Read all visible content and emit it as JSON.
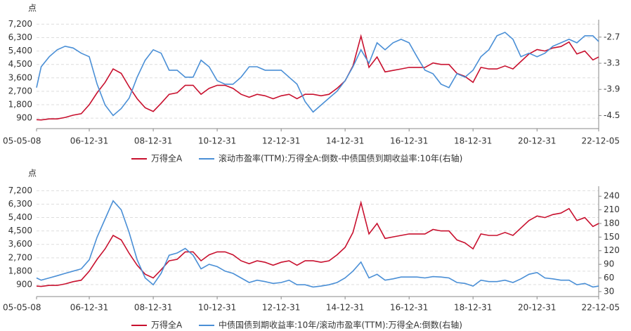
{
  "chart_data": [
    {
      "type": "line",
      "y_unit": "点",
      "x": [
        "05-05-08",
        "05-06-30",
        "05-09-30",
        "05-12-31",
        "06-03-31",
        "06-06-30",
        "06-09-30",
        "06-12-31",
        "07-03-31",
        "07-06-30",
        "07-09-30",
        "07-12-31",
        "08-03-31",
        "08-06-30",
        "08-09-30",
        "08-12-31",
        "09-03-31",
        "09-06-30",
        "09-09-30",
        "09-12-31",
        "10-03-31",
        "10-06-30",
        "10-09-30",
        "10-12-31",
        "11-03-31",
        "11-06-30",
        "11-09-30",
        "11-12-31",
        "12-03-31",
        "12-06-30",
        "12-09-30",
        "12-12-31",
        "13-03-31",
        "13-06-30",
        "13-09-30",
        "13-12-31",
        "14-03-31",
        "14-06-30",
        "14-09-30",
        "14-12-31",
        "15-03-31",
        "15-06-30",
        "15-09-30",
        "15-12-31",
        "16-03-31",
        "16-06-30",
        "16-09-30",
        "16-12-31",
        "17-03-31",
        "17-06-30",
        "17-09-30",
        "17-12-31",
        "18-03-31",
        "18-06-30",
        "18-09-30",
        "18-12-31",
        "19-03-31",
        "19-06-30",
        "19-09-30",
        "19-12-31",
        "20-03-31",
        "20-06-30",
        "20-09-30",
        "20-12-31",
        "21-03-31",
        "21-06-30",
        "21-09-30",
        "21-12-31",
        "22-03-31",
        "22-06-30",
        "22-09-30",
        "22-12-05"
      ],
      "xlim": [
        "05-05-08",
        "22-12-05"
      ],
      "xticks": [
        "05-05-08",
        "06-12-31",
        "08-12-31",
        "10-12-31",
        "12-12-31",
        "14-12-31",
        "16-12-31",
        "18-12-31",
        "20-12-31",
        "22-12-05"
      ],
      "ylim": [
        200,
        7500
      ],
      "yticks": [
        {
          "value": 900,
          "label": "900"
        },
        {
          "value": 1800,
          "label": "1,800"
        },
        {
          "value": 2700,
          "label": "2,700"
        },
        {
          "value": 3600,
          "label": "3,600"
        },
        {
          "value": 4500,
          "label": "4,500"
        },
        {
          "value": 5400,
          "label": "5,400"
        },
        {
          "value": 6300,
          "label": "6,300"
        },
        {
          "value": 7200,
          "label": "7,200"
        }
      ],
      "y2lim": [
        -4.8,
        -2.3
      ],
      "y2ticks": [
        -4.5,
        -3.9,
        -3.3,
        -2.7
      ],
      "grid": true,
      "series": [
        {
          "name": "万得全A",
          "color": "#c8102e",
          "values": [
            800,
            780,
            850,
            850,
            950,
            1100,
            1200,
            1800,
            2600,
            3300,
            4200,
            3900,
            3000,
            2200,
            1600,
            1350,
            1900,
            2500,
            2600,
            3100,
            3100,
            2500,
            2900,
            3100,
            3100,
            2900,
            2500,
            2300,
            2500,
            2400,
            2200,
            2400,
            2500,
            2200,
            2500,
            2500,
            2400,
            2500,
            2900,
            3400,
            4400,
            6400,
            4300,
            5000,
            4000,
            4100,
            4200,
            4300,
            4300,
            4300,
            4600,
            4500,
            4500,
            3900,
            3700,
            3300,
            4300,
            4200,
            4200,
            4400,
            4200,
            4700,
            5200,
            5500,
            5400,
            5600,
            5700,
            6000,
            5200,
            5400,
            4800,
            5000
          ]
        },
        {
          "name": "滚动市盈率(TTM):万得全A:倒数-中债国债到期收益率:10年(右轴)",
          "color": "#4a8fd6",
          "axis": "y2",
          "values": [
            -3.86,
            -3.38,
            -3.15,
            -2.99,
            -2.91,
            -2.95,
            -3.07,
            -3.15,
            -3.78,
            -4.26,
            -4.5,
            -4.34,
            -4.1,
            -3.62,
            -3.23,
            -2.99,
            -3.07,
            -3.46,
            -3.46,
            -3.62,
            -3.62,
            -3.23,
            -3.38,
            -3.7,
            -3.78,
            -3.78,
            -3.62,
            -3.38,
            -3.38,
            -3.46,
            -3.46,
            -3.46,
            -3.62,
            -3.78,
            -4.18,
            -4.42,
            -4.26,
            -4.1,
            -3.94,
            -3.7,
            -3.38,
            -2.99,
            -3.3,
            -2.83,
            -2.99,
            -2.83,
            -2.75,
            -2.83,
            -3.15,
            -3.46,
            -3.54,
            -3.78,
            -3.86,
            -3.54,
            -3.62,
            -3.46,
            -3.15,
            -2.99,
            -2.67,
            -2.59,
            -2.75,
            -3.15,
            -3.07,
            -3.15,
            -3.07,
            -2.91,
            -2.83,
            -2.75,
            -2.83,
            -2.67,
            -2.67,
            -2.8
          ]
        }
      ]
    },
    {
      "type": "line",
      "y_unit": "点",
      "x": [
        "05-05-08",
        "05-06-30",
        "05-09-30",
        "05-12-31",
        "06-03-31",
        "06-06-30",
        "06-09-30",
        "06-12-31",
        "07-03-31",
        "07-06-30",
        "07-09-30",
        "07-12-31",
        "08-03-31",
        "08-06-30",
        "08-09-30",
        "08-12-31",
        "09-03-31",
        "09-06-30",
        "09-09-30",
        "09-12-31",
        "10-03-31",
        "10-06-30",
        "10-09-30",
        "10-12-31",
        "11-03-31",
        "11-06-30",
        "11-09-30",
        "11-12-31",
        "12-03-31",
        "12-06-30",
        "12-09-30",
        "12-12-31",
        "13-03-31",
        "13-06-30",
        "13-09-30",
        "13-12-31",
        "14-03-31",
        "14-06-30",
        "14-09-30",
        "14-12-31",
        "15-03-31",
        "15-06-30",
        "15-09-30",
        "15-12-31",
        "16-03-31",
        "16-06-30",
        "16-09-30",
        "16-12-31",
        "17-03-31",
        "17-06-30",
        "17-09-30",
        "17-12-31",
        "18-03-31",
        "18-06-30",
        "18-09-30",
        "18-12-31",
        "19-03-31",
        "19-06-30",
        "19-09-30",
        "19-12-31",
        "20-03-31",
        "20-06-30",
        "20-09-30",
        "20-12-31",
        "21-03-31",
        "21-06-30",
        "21-09-30",
        "21-12-31",
        "22-03-31",
        "22-06-30",
        "22-09-30",
        "22-12-05"
      ],
      "xlim": [
        "05-05-08",
        "22-12-05"
      ],
      "xticks": [
        "05-05-08",
        "06-12-31",
        "08-12-31",
        "10-12-31",
        "12-12-31",
        "14-12-31",
        "16-12-31",
        "18-12-31",
        "20-12-31",
        "22-12-05"
      ],
      "ylim": [
        100,
        7500
      ],
      "yticks": [
        {
          "value": 900,
          "label": "900"
        },
        {
          "value": 1800,
          "label": "1,800"
        },
        {
          "value": 2700,
          "label": "2,700"
        },
        {
          "value": 3600,
          "label": "3,600"
        },
        {
          "value": 4500,
          "label": "4,500"
        },
        {
          "value": 5400,
          "label": "5,400"
        },
        {
          "value": 6300,
          "label": "6,300"
        },
        {
          "value": 7200,
          "label": "7,200"
        }
      ],
      "y2lim": [
        19,
        262
      ],
      "y2ticks": [
        30,
        60,
        90,
        120,
        150,
        180,
        210,
        240
      ],
      "grid": true,
      "series": [
        {
          "name": "万得全A",
          "color": "#c8102e",
          "values": [
            800,
            780,
            850,
            850,
            950,
            1100,
            1200,
            1800,
            2600,
            3300,
            4200,
            3900,
            3000,
            2200,
            1600,
            1350,
            1900,
            2500,
            2600,
            3100,
            3100,
            2500,
            2900,
            3100,
            3100,
            2900,
            2500,
            2300,
            2500,
            2400,
            2200,
            2400,
            2500,
            2200,
            2500,
            2500,
            2400,
            2500,
            2900,
            3400,
            4400,
            6400,
            4300,
            5000,
            4000,
            4100,
            4200,
            4300,
            4300,
            4300,
            4600,
            4500,
            4500,
            3900,
            3700,
            3300,
            4300,
            4200,
            4200,
            4400,
            4200,
            4700,
            5200,
            5500,
            5400,
            5600,
            5700,
            6000,
            5200,
            5400,
            4800,
            5000
          ]
        },
        {
          "name": "中债国债到期收益率:10年/滚动市盈率(TTM):万得全A:倒数(右轴)",
          "color": "#4a8fd6",
          "axis": "y2",
          "values": [
            60,
            55,
            60,
            65,
            70,
            75,
            80,
            100,
            150,
            190,
            230,
            210,
            160,
            100,
            60,
            45,
            70,
            110,
            115,
            125,
            110,
            80,
            90,
            85,
            75,
            70,
            60,
            50,
            55,
            52,
            48,
            50,
            55,
            45,
            45,
            40,
            42,
            45,
            50,
            60,
            75,
            95,
            60,
            68,
            55,
            58,
            62,
            62,
            62,
            60,
            63,
            62,
            60,
            50,
            48,
            42,
            55,
            52,
            52,
            55,
            50,
            58,
            68,
            72,
            60,
            58,
            55,
            55,
            45,
            48,
            40,
            42
          ]
        }
      ]
    }
  ]
}
